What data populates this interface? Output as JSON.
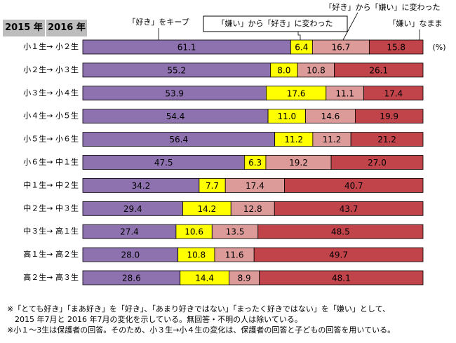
{
  "headers": {
    "year_from": "2015 年",
    "year_to": "2016 年"
  },
  "legend": {
    "keep_like": "「好き」をキープ",
    "dislike_to_like": "「嫌い」から「好き」に変わった",
    "like_to_dislike": "「好き」から「嫌い」に変わった",
    "keep_dislike": "「嫌い」なまま",
    "unit": "(%)"
  },
  "colors": {
    "keep_like": "#8e72b0",
    "dislike_to_like": "#ffff00",
    "like_to_dislike": "#dc9b98",
    "keep_dislike": "#c0444a"
  },
  "chart_data": {
    "type": "bar",
    "orientation": "horizontal",
    "stacked": true,
    "unit": "%",
    "categories": [
      "小１生→ 小２生",
      "小２生→ 小３生",
      "小３生→ 小４生",
      "小４生→ 小５生",
      "小５生→ 小６生",
      "小６生→ 中１生",
      "中１生→ 中２生",
      "中２生→ 中３生",
      "中３生→ 高１生",
      "高１生→ 高２生",
      "高２生→ 高３生"
    ],
    "series": [
      {
        "name": "「好き」をキープ",
        "color": "#8e72b0",
        "values": [
          61.1,
          55.2,
          53.9,
          54.4,
          56.4,
          47.5,
          34.2,
          29.4,
          27.4,
          28.0,
          28.6
        ]
      },
      {
        "name": "「嫌い」から「好き」に変わった",
        "color": "#ffff00",
        "values": [
          6.4,
          8.0,
          17.6,
          11.0,
          11.2,
          6.3,
          7.7,
          14.2,
          10.6,
          10.8,
          14.4
        ]
      },
      {
        "name": "「好き」から「嫌い」に変わった",
        "color": "#dc9b98",
        "values": [
          16.7,
          10.8,
          11.1,
          14.6,
          11.2,
          19.2,
          17.4,
          12.8,
          13.5,
          11.6,
          8.9
        ]
      },
      {
        "name": "「嫌い」なまま",
        "color": "#c0444a",
        "values": [
          15.8,
          26.1,
          17.4,
          19.9,
          21.2,
          27.0,
          40.7,
          43.7,
          48.5,
          49.7,
          48.1
        ]
      }
    ]
  },
  "footnotes": [
    "※「とても好き」「まあ好き」を「好き」、「あまり好きではない」「まったく好きではない」を「嫌い」として、",
    "　2015 年7月と 2016 年7月の変化を示している。無回答・不明の人は除いている。",
    "※小１～3生は保護者の回答。そのため、小３生→小４生の変化は、保護者の回答と子どもの回答を用いている。"
  ]
}
